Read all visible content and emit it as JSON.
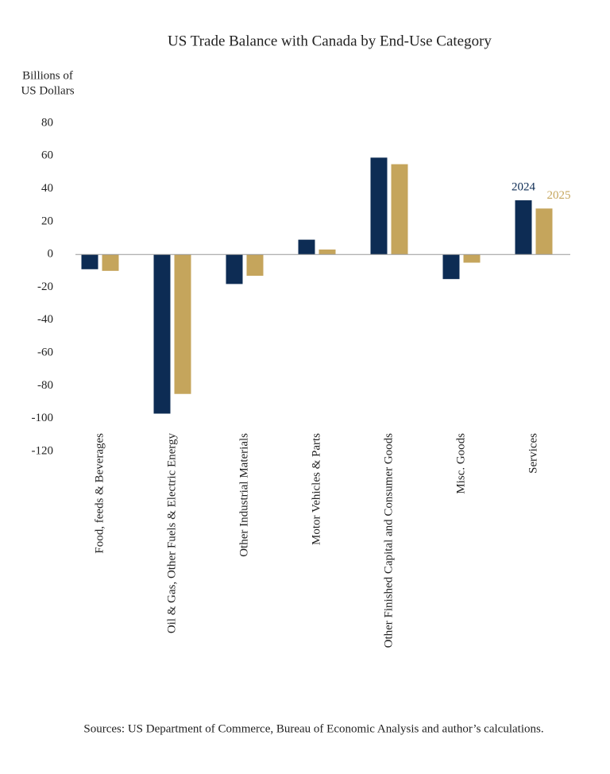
{
  "chart_data": {
    "type": "bar",
    "title": "US Trade Balance with Canada by End-Use Category",
    "ylabel": [
      "Billions of",
      "US Dollars"
    ],
    "source": "Sources: US Department of Commerce, Bureau of Economic Analysis and author’s calculations.",
    "categories": [
      "Food, feeds & Beverages",
      "Oil & Gas, Other Fuels & Electric Energy",
      "Other Industrial Materials",
      "Motor Vehicles & Parts",
      "Other Finished Capital and Consumer Goods",
      "Misc. Goods",
      "Services"
    ],
    "series": [
      {
        "name": "2024",
        "color": "#0d2c54",
        "values": [
          -9,
          -97,
          -18,
          9,
          59,
          -15,
          33
        ]
      },
      {
        "name": "2025",
        "color": "#c5a55c",
        "values": [
          -10,
          -85,
          -13,
          3,
          55,
          -5,
          28
        ]
      }
    ],
    "ylim": [
      -120,
      80
    ],
    "yticks": [
      -120,
      -100,
      -80,
      -60,
      -40,
      -20,
      0,
      20,
      40,
      60,
      80
    ]
  }
}
